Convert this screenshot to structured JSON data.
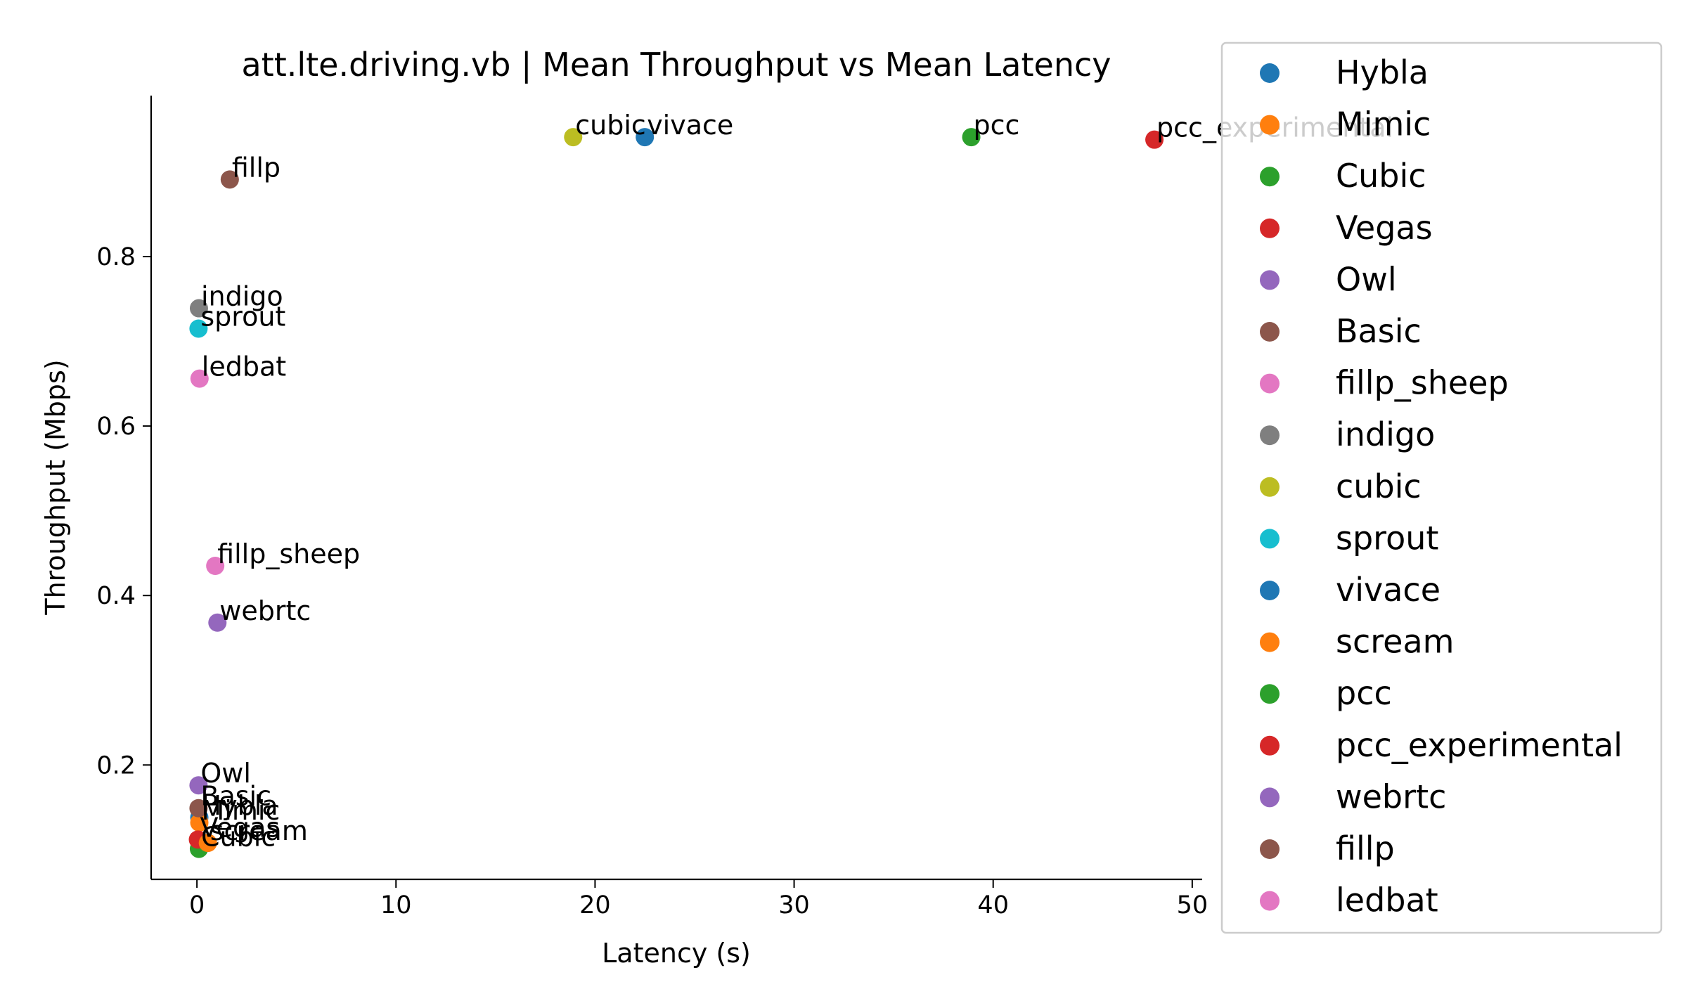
{
  "chart_data": {
    "type": "scatter",
    "title": "att.lte.driving.vb | Mean Throughput vs Mean Latency",
    "xlabel": "Latency (s)",
    "ylabel": "Throughput (Mbps)",
    "xlim": [
      -2.3,
      50.5
    ],
    "ylim": [
      0.065,
      0.99
    ],
    "xticks": [
      0,
      10,
      20,
      30,
      40,
      50
    ],
    "yticks": [
      0.2,
      0.4,
      0.6,
      0.8
    ],
    "xtick_labels": [
      "0",
      "10",
      "20",
      "30",
      "40",
      "50"
    ],
    "ytick_labels": [
      "0.2",
      "0.4",
      "0.6",
      "0.8"
    ],
    "legend_position": "outside-right",
    "series": [
      {
        "name": "Hybla",
        "color": "#1f77b4",
        "x": 0.12,
        "y": 0.138
      },
      {
        "name": "Mimic",
        "color": "#ff7f0e",
        "x": 0.12,
        "y": 0.132
      },
      {
        "name": "Cubic",
        "color": "#2ca02c",
        "x": 0.1,
        "y": 0.101
      },
      {
        "name": "Vegas",
        "color": "#d62728",
        "x": 0.05,
        "y": 0.112
      },
      {
        "name": "Owl",
        "color": "#9467bd",
        "x": 0.08,
        "y": 0.176
      },
      {
        "name": "Basic",
        "color": "#8c564b",
        "x": 0.08,
        "y": 0.149
      },
      {
        "name": "fillp_sheep",
        "color": "#e377c2",
        "x": 0.92,
        "y": 0.435
      },
      {
        "name": "indigo",
        "color": "#7f7f7f",
        "x": 0.1,
        "y": 0.739
      },
      {
        "name": "cubic",
        "color": "#bcbd22",
        "x": 18.9,
        "y": 0.941
      },
      {
        "name": "sprout",
        "color": "#17becf",
        "x": 0.08,
        "y": 0.715
      },
      {
        "name": "vivace",
        "color": "#1f77b4",
        "x": 22.5,
        "y": 0.941
      },
      {
        "name": "scream",
        "color": "#ff7f0e",
        "x": 0.55,
        "y": 0.108
      },
      {
        "name": "pcc",
        "color": "#2ca02c",
        "x": 38.9,
        "y": 0.941
      },
      {
        "name": "pcc_experimental",
        "color": "#d62728",
        "x": 48.1,
        "y": 0.938
      },
      {
        "name": "webrtc",
        "color": "#9467bd",
        "x": 1.03,
        "y": 0.368
      },
      {
        "name": "fillp",
        "color": "#8c564b",
        "x": 1.65,
        "y": 0.891
      },
      {
        "name": "ledbat",
        "color": "#e377c2",
        "x": 0.13,
        "y": 0.656
      }
    ]
  }
}
